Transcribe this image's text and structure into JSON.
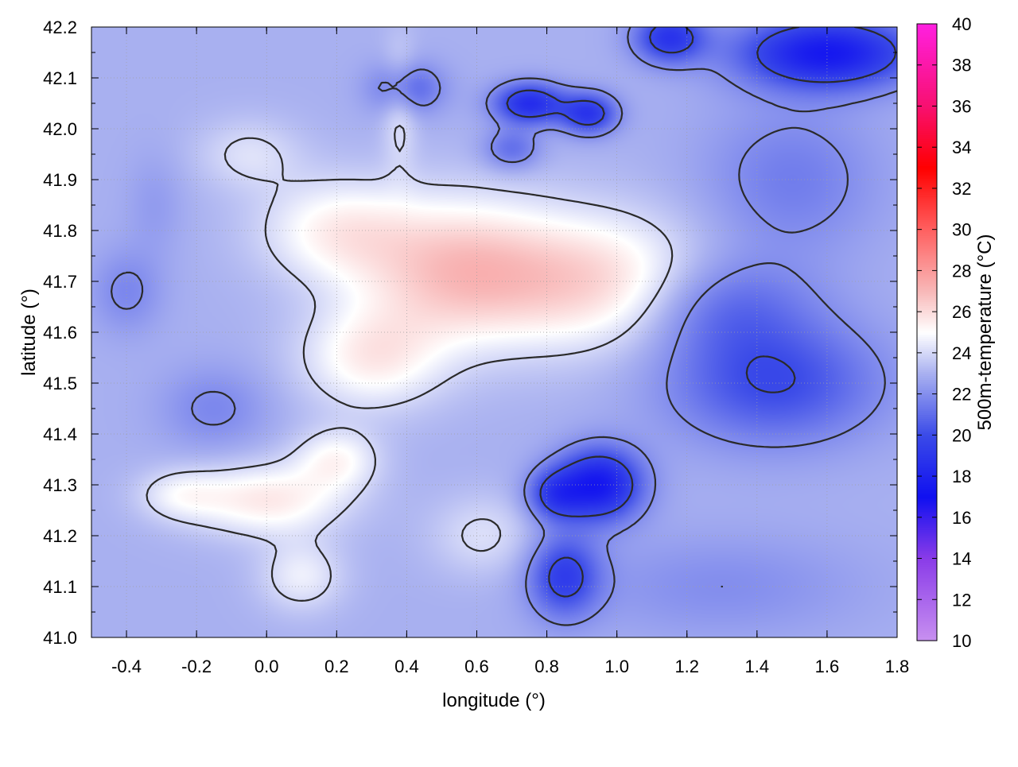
{
  "chart_data": {
    "type": "heatmap",
    "title": "",
    "xlabel": "longitude (°)",
    "ylabel": "latitude (°)",
    "xlim": [
      -0.5,
      1.8
    ],
    "ylim": [
      41.0,
      42.2
    ],
    "x_ticks": [
      -0.4,
      -0.2,
      0.0,
      0.2,
      0.4,
      0.6,
      0.8,
      1.0,
      1.2,
      1.4,
      1.6,
      1.8
    ],
    "x_tick_labels": [
      "-0.4",
      "-0.2",
      "0.0",
      "0.2",
      "0.4",
      "0.6",
      "0.8",
      "1.0",
      "1.2",
      "1.4",
      "1.6",
      "1.8"
    ],
    "y_ticks": [
      41.0,
      41.1,
      41.2,
      41.3,
      41.4,
      41.5,
      41.6,
      41.7,
      41.8,
      41.9,
      42.0,
      42.1,
      42.2
    ],
    "y_tick_labels": [
      "41.0",
      "41.1",
      "41.2",
      "41.3",
      "41.4",
      "41.5",
      "41.6",
      "41.7",
      "41.8",
      "41.9",
      "42.0",
      "42.1",
      "42.2"
    ],
    "grid": true,
    "colorbar": {
      "label": "500m-temperature (°C)",
      "range": [
        10,
        40
      ],
      "ticks": [
        10,
        12,
        14,
        16,
        18,
        20,
        22,
        24,
        26,
        28,
        30,
        32,
        34,
        36,
        38,
        40
      ],
      "tick_labels": [
        "10",
        "12",
        "14",
        "16",
        "18",
        "20",
        "22",
        "24",
        "26",
        "28",
        "30",
        "32",
        "34",
        "36",
        "38",
        "40"
      ],
      "stops": [
        {
          "value": 10,
          "color": "#c890f0"
        },
        {
          "value": 14,
          "color": "#8a3ce8"
        },
        {
          "value": 17,
          "color": "#1010f0"
        },
        {
          "value": 20,
          "color": "#3a4ae8"
        },
        {
          "value": 23,
          "color": "#a8b0f0"
        },
        {
          "value": 25,
          "color": "#ffffff"
        },
        {
          "value": 27,
          "color": "#f8b8b8"
        },
        {
          "value": 30,
          "color": "#ff6060"
        },
        {
          "value": 33,
          "color": "#ff0000"
        },
        {
          "value": 36,
          "color": "#f81070"
        },
        {
          "value": 40,
          "color": "#ff20e0"
        }
      ]
    },
    "field": {
      "base": 23.0,
      "features": [
        {
          "lon": 0.55,
          "lat": 41.72,
          "rlon": 0.28,
          "rlat": 0.14,
          "amp": 3.6
        },
        {
          "lon": 0.95,
          "lat": 41.7,
          "rlon": 0.3,
          "rlat": 0.13,
          "amp": 3.0
        },
        {
          "lon": 0.3,
          "lat": 41.55,
          "rlon": 0.2,
          "rlat": 0.1,
          "amp": 2.4
        },
        {
          "lon": 0.2,
          "lat": 41.8,
          "rlon": 0.22,
          "rlat": 0.1,
          "amp": 2.2
        },
        {
          "lon": 0.0,
          "lat": 41.27,
          "rlon": 0.22,
          "rlat": 0.07,
          "amp": 2.6
        },
        {
          "lon": 0.2,
          "lat": 41.35,
          "rlon": 0.12,
          "rlat": 0.06,
          "amp": 2.0
        },
        {
          "lon": -0.25,
          "lat": 41.28,
          "rlon": 0.12,
          "rlat": 0.05,
          "amp": 1.4
        },
        {
          "lon": 0.1,
          "lat": 41.12,
          "rlon": 0.12,
          "rlat": 0.07,
          "amp": 1.6
        },
        {
          "lon": 0.38,
          "lat": 42.05,
          "rlon": 0.05,
          "rlat": 0.12,
          "amp": 1.4
        },
        {
          "lon": -0.05,
          "lat": 41.95,
          "rlon": 0.15,
          "rlat": 0.07,
          "amp": 1.2
        },
        {
          "lon": 0.62,
          "lat": 41.2,
          "rlon": 0.15,
          "rlat": 0.08,
          "amp": 1.2
        },
        {
          "lon": -0.32,
          "lat": 41.85,
          "rlon": 0.08,
          "rlat": 0.1,
          "amp": -0.6
        },
        {
          "lon": -0.15,
          "lat": 41.45,
          "rlon": 0.15,
          "rlat": 0.08,
          "amp": -1.2
        },
        {
          "lon": 0.95,
          "lat": 41.3,
          "rlon": 0.12,
          "rlat": 0.07,
          "amp": -5.5
        },
        {
          "lon": 0.82,
          "lat": 41.28,
          "rlon": 0.08,
          "rlat": 0.05,
          "amp": -3.0
        },
        {
          "lon": 0.85,
          "lat": 41.12,
          "rlon": 0.1,
          "rlat": 0.08,
          "amp": -3.5
        },
        {
          "lon": 1.45,
          "lat": 41.5,
          "rlon": 0.3,
          "rlat": 0.12,
          "amp": -3.0
        },
        {
          "lon": 1.3,
          "lat": 41.65,
          "rlon": 0.25,
          "rlat": 0.1,
          "amp": -2.0
        },
        {
          "lon": 1.5,
          "lat": 41.9,
          "rlon": 0.25,
          "rlat": 0.15,
          "amp": -1.5
        },
        {
          "lon": 1.6,
          "lat": 42.15,
          "rlon": 0.25,
          "rlat": 0.07,
          "amp": -5.5
        },
        {
          "lon": 1.15,
          "lat": 42.18,
          "rlon": 0.1,
          "rlat": 0.05,
          "amp": -4.0
        },
        {
          "lon": 0.75,
          "lat": 42.05,
          "rlon": 0.1,
          "rlat": 0.04,
          "amp": -4.5
        },
        {
          "lon": 0.92,
          "lat": 42.03,
          "rlon": 0.08,
          "rlat": 0.04,
          "amp": -4.0
        },
        {
          "lon": 0.4,
          "lat": 42.08,
          "rlon": 0.1,
          "rlat": 0.05,
          "amp": -2.5
        },
        {
          "lon": 0.7,
          "lat": 41.96,
          "rlon": 0.08,
          "rlat": 0.04,
          "amp": -2.0
        },
        {
          "lon": -0.4,
          "lat": 41.68,
          "rlon": 0.1,
          "rlat": 0.08,
          "amp": -1.2
        },
        {
          "lon": 1.3,
          "lat": 41.1,
          "rlon": 0.4,
          "rlat": 0.1,
          "amp": -1.0
        }
      ],
      "contour_levels": [
        20,
        22,
        24
      ]
    }
  }
}
